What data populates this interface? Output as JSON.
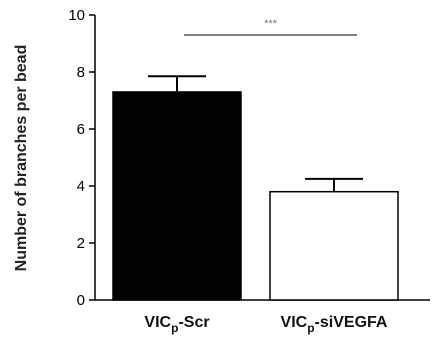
{
  "chart_data": {
    "type": "bar",
    "title": "",
    "ylabel": "Number of branches per bead",
    "xlabel": "",
    "ylim": [
      0,
      10
    ],
    "yticks": [
      "0",
      "2",
      "4",
      "6",
      "8",
      "10"
    ],
    "categories": [
      {
        "base": "VIC",
        "sub": "p",
        "suffix": "-Scr"
      },
      {
        "base": "VIC",
        "sub": "p",
        "suffix": "-siVEGFA"
      }
    ],
    "values": [
      7.3,
      3.8
    ],
    "errors": [
      0.55,
      0.45
    ],
    "bar_fills": [
      "#000000",
      "#ffffff"
    ],
    "significance": {
      "label": "***",
      "between": [
        0,
        1
      ],
      "y": 9.3
    },
    "grid": false
  }
}
